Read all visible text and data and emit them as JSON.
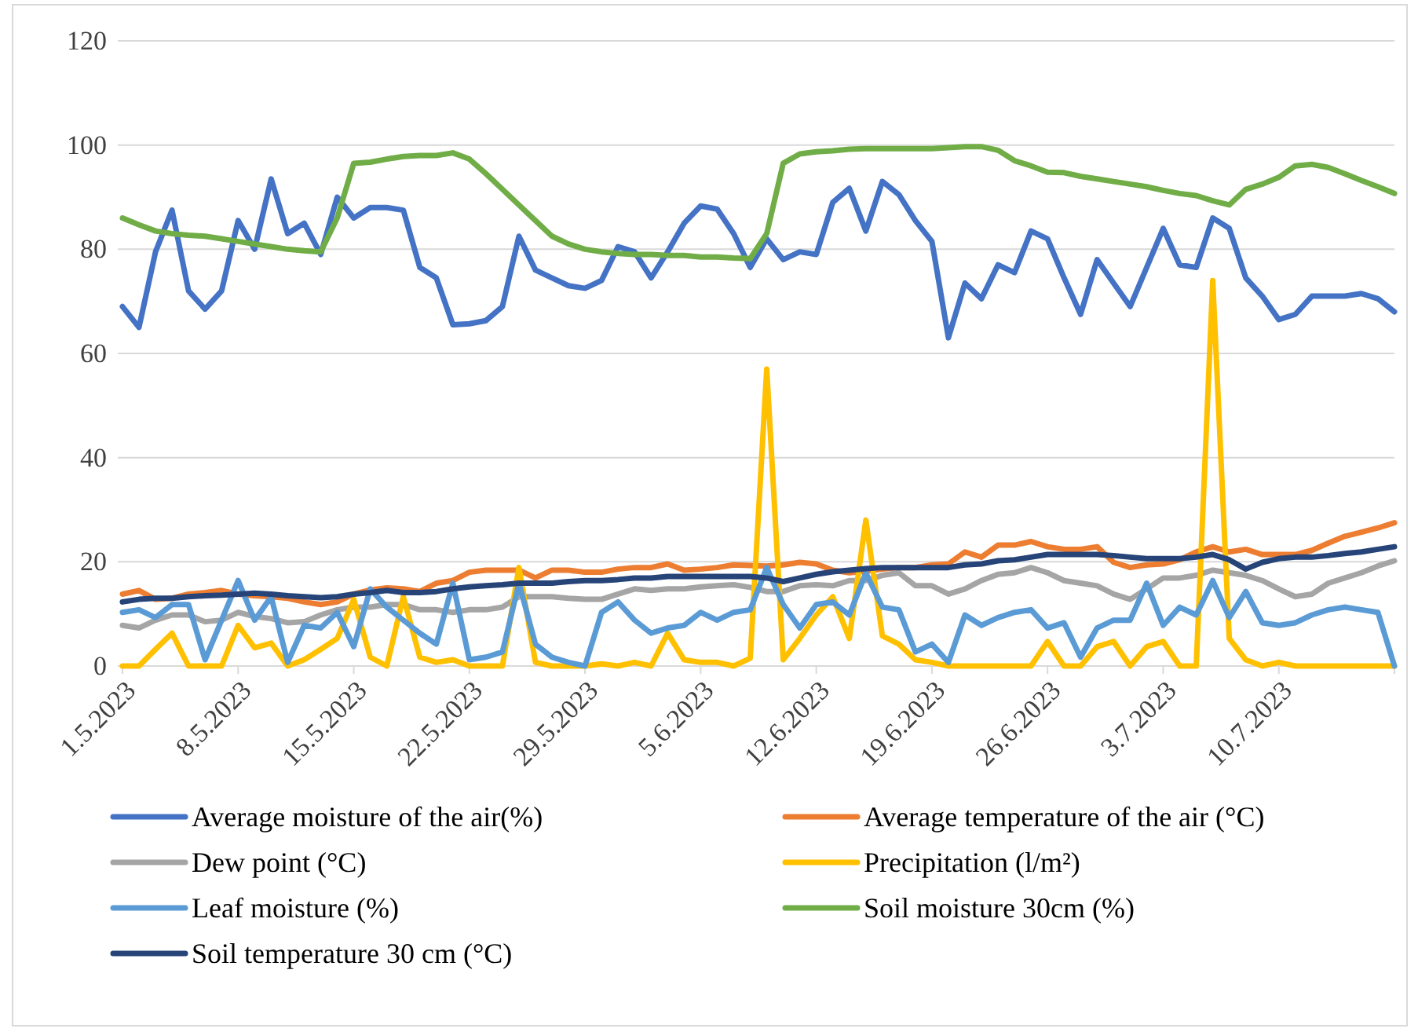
{
  "chart_data": {
    "type": "line",
    "x": [
      "2023-05-01",
      "2023-05-02",
      "2023-05-03",
      "2023-05-04",
      "2023-05-05",
      "2023-05-06",
      "2023-05-07",
      "2023-05-08",
      "2023-05-09",
      "2023-05-10",
      "2023-05-11",
      "2023-05-12",
      "2023-05-13",
      "2023-05-14",
      "2023-05-15",
      "2023-05-16",
      "2023-05-17",
      "2023-05-18",
      "2023-05-19",
      "2023-05-20",
      "2023-05-21",
      "2023-05-22",
      "2023-05-23",
      "2023-05-24",
      "2023-05-25",
      "2023-05-26",
      "2023-05-27",
      "2023-05-28",
      "2023-05-29",
      "2023-05-30",
      "2023-05-31",
      "2023-06-01",
      "2023-06-02",
      "2023-06-03",
      "2023-06-04",
      "2023-06-05",
      "2023-06-06",
      "2023-06-07",
      "2023-06-08",
      "2023-06-09",
      "2023-06-10",
      "2023-06-11",
      "2023-06-12",
      "2023-06-13",
      "2023-06-14",
      "2023-06-15",
      "2023-06-16",
      "2023-06-17",
      "2023-06-18",
      "2023-06-19",
      "2023-06-20",
      "2023-06-21",
      "2023-06-22",
      "2023-06-23",
      "2023-06-24",
      "2023-06-25",
      "2023-06-26",
      "2023-06-27",
      "2023-06-28",
      "2023-06-29",
      "2023-06-30",
      "2023-07-01",
      "2023-07-02",
      "2023-07-03",
      "2023-07-04",
      "2023-07-05",
      "2023-07-06",
      "2023-07-07",
      "2023-07-08",
      "2023-07-09",
      "2023-07-10",
      "2023-07-11",
      "2023-07-12",
      "2023-07-13",
      "2023-07-14",
      "2023-07-15",
      "2023-07-16",
      "2023-07-17"
    ],
    "xlim": [
      "2023-05-01",
      "2023-07-17"
    ],
    "xticks": [
      {
        "value": "2023-05-01",
        "label": "1.5.2023"
      },
      {
        "value": "2023-05-08",
        "label": "8.5.2023"
      },
      {
        "value": "2023-05-15",
        "label": "15.5.2023"
      },
      {
        "value": "2023-05-22",
        "label": "22.5.2023"
      },
      {
        "value": "2023-05-29",
        "label": "29.5.2023"
      },
      {
        "value": "2023-06-05",
        "label": "5.6.2023"
      },
      {
        "value": "2023-06-12",
        "label": "12.6.2023"
      },
      {
        "value": "2023-06-19",
        "label": "19.6.2023"
      },
      {
        "value": "2023-06-26",
        "label": "26.6.2023"
      },
      {
        "value": "2023-07-03",
        "label": "3.7.2023"
      },
      {
        "value": "2023-07-10",
        "label": "10.7.2023"
      }
    ],
    "ylim": [
      0,
      120
    ],
    "yticks": [
      0,
      20,
      40,
      60,
      80,
      100,
      120
    ],
    "grid": "y",
    "legend": "bottom",
    "line_style": "solid",
    "marker": "none",
    "series": [
      {
        "name": "Average moisture of the air(%)",
        "color": "#4472c4",
        "values": [
          69,
          65,
          79.5,
          87.5,
          72,
          68.5,
          72,
          85.5,
          80,
          93.5,
          83,
          85,
          79,
          90,
          86,
          88,
          88,
          87.5,
          76.5,
          74.5,
          65.5,
          65.7,
          66.3,
          69,
          82.5,
          76,
          74.5,
          73,
          72.5,
          74,
          80.5,
          79.5,
          74.5,
          79.5,
          85,
          88.3,
          87.7,
          83,
          76.5,
          82,
          78,
          79.5,
          79,
          89,
          91.7,
          83.5,
          93,
          90.5,
          85.5,
          81.5,
          63,
          73.5,
          70.5,
          77,
          75.5,
          83.5,
          82,
          74.5,
          67.5,
          78,
          73.5,
          69,
          76.5,
          84,
          77,
          76.5,
          86,
          84,
          74.5,
          71,
          66.5,
          67.5,
          71,
          71,
          71,
          71.5,
          70.5,
          68
        ]
      },
      {
        "name": "Average temperature of the air (°C)",
        "color": "#ed7d31",
        "values": [
          13.8,
          14.5,
          12.8,
          13,
          13.8,
          14.1,
          14.5,
          13.8,
          13.5,
          13.3,
          13,
          12.3,
          11.8,
          12.3,
          13.8,
          14.6,
          15,
          14.8,
          14.3,
          15.9,
          16.4,
          18,
          18.4,
          18.4,
          18.4,
          16.9,
          18.4,
          18.4,
          18,
          18,
          18.6,
          18.9,
          18.9,
          19.6,
          18.4,
          18.6,
          18.9,
          19.4,
          19.3,
          19.2,
          19.4,
          19.9,
          19.6,
          18.4,
          17.9,
          18.2,
          18.6,
          18.9,
          18.9,
          19.4,
          19.6,
          21.9,
          20.9,
          23.2,
          23.2,
          23.9,
          22.9,
          22.4,
          22.4,
          22.9,
          19.9,
          18.9,
          19.4,
          19.6,
          20.4,
          21.9,
          22.9,
          21.9,
          22.4,
          21.4,
          21.4,
          21.4,
          22.2,
          23.6,
          24.9,
          25.7,
          26.5,
          27.5
        ]
      },
      {
        "name": "Dew point (°C)",
        "color": "#a5a5a5",
        "values": [
          7.8,
          7.3,
          8.8,
          9.8,
          9.8,
          8.5,
          8.8,
          10.3,
          9.5,
          9.1,
          8.3,
          8.5,
          9.8,
          10.8,
          11.3,
          11.3,
          11.8,
          11.8,
          10.8,
          10.8,
          10.3,
          10.8,
          10.8,
          11.3,
          13.3,
          13.3,
          13.3,
          13,
          12.8,
          12.8,
          13.8,
          14.8,
          14.5,
          14.8,
          14.8,
          15.2,
          15.4,
          15.6,
          15.1,
          14.3,
          14.3,
          15.4,
          15.6,
          15.4,
          16.4,
          16.4,
          17.4,
          17.9,
          15.4,
          15.4,
          13.8,
          14.8,
          16.4,
          17.6,
          17.9,
          18.9,
          17.9,
          16.4,
          15.9,
          15.4,
          13.8,
          12.8,
          14.8,
          16.9,
          16.9,
          17.4,
          18.4,
          17.9,
          17.4,
          16.4,
          14.8,
          13.3,
          13.8,
          15.9,
          16.9,
          17.9,
          19.2,
          20.2
        ]
      },
      {
        "name": "Precipitation (l/m²)",
        "color": "#ffc000",
        "values": [
          0,
          0,
          3.2,
          6.3,
          0,
          0,
          0,
          7.8,
          3.5,
          4.4,
          0,
          1.2,
          3.2,
          5.3,
          12.8,
          1.7,
          0,
          13.3,
          1.7,
          0.7,
          1.2,
          0,
          0,
          0,
          18.9,
          0.7,
          0,
          0,
          0,
          0.4,
          0,
          0.7,
          0,
          6.3,
          1.2,
          0.7,
          0.7,
          0,
          1.5,
          57,
          1.2,
          5.3,
          9.8,
          13.3,
          5.3,
          28,
          5.8,
          4.2,
          1.2,
          0.7,
          0,
          0,
          0,
          0,
          0,
          0,
          4.7,
          0,
          0,
          3.7,
          4.7,
          0,
          3.7,
          4.7,
          0,
          0,
          74,
          5.3,
          1.2,
          0,
          0.7,
          0,
          0,
          0,
          0,
          0,
          0,
          0
        ]
      },
      {
        "name": "Leaf moisture (%)",
        "color": "#5b9bd5",
        "values": [
          10.3,
          10.8,
          9.3,
          11.8,
          11.8,
          1.2,
          8.8,
          16.4,
          8.8,
          13.3,
          0.7,
          7.8,
          7.3,
          10.3,
          3.7,
          14.8,
          11.3,
          8.8,
          6.3,
          4.2,
          15.9,
          1.2,
          1.7,
          2.7,
          15.9,
          4.2,
          1.7,
          0.7,
          0,
          10.3,
          12.3,
          8.8,
          6.3,
          7.3,
          7.8,
          10.3,
          8.8,
          10.3,
          10.8,
          18.9,
          11.8,
          7.3,
          11.8,
          12.3,
          9.8,
          17.9,
          11.3,
          10.8,
          2.7,
          4.2,
          0.7,
          9.8,
          7.8,
          9.3,
          10.3,
          10.8,
          7.3,
          8.3,
          1.7,
          7.3,
          8.8,
          8.8,
          15.9,
          7.8,
          11.3,
          9.8,
          16.4,
          9.3,
          14.3,
          8.3,
          7.8,
          8.3,
          9.8,
          10.8,
          11.3,
          10.8,
          10.3,
          0
        ]
      },
      {
        "name": "Soil moisture 30cm (%)",
        "color": "#70ad47",
        "values": [
          86,
          84.7,
          83.5,
          83,
          82.7,
          82.5,
          82,
          81.5,
          81,
          80.5,
          80,
          79.7,
          79.5,
          86,
          96.5,
          96.7,
          97.3,
          97.8,
          98,
          98,
          98.5,
          97.3,
          94.5,
          91.5,
          88.5,
          85.5,
          82.5,
          81,
          80,
          79.5,
          79.2,
          79,
          79,
          78.8,
          78.8,
          78.5,
          78.5,
          78.3,
          78.2,
          83,
          96.5,
          98.3,
          98.7,
          98.9,
          99.2,
          99.3,
          99.3,
          99.3,
          99.3,
          99.3,
          99.5,
          99.7,
          99.7,
          99,
          97,
          96,
          94.8,
          94.7,
          94,
          93.5,
          93,
          92.5,
          92,
          91.3,
          90.7,
          90.3,
          89.3,
          88.5,
          91.5,
          92.5,
          93.8,
          96,
          96.3,
          95.7,
          94.5,
          93.2,
          92,
          90.7
        ]
      },
      {
        "name": "Soil temperature 30 cm (°C)",
        "color": "#264478",
        "values": [
          12.3,
          12.8,
          13,
          13,
          13.3,
          13.5,
          13.6,
          13.8,
          14,
          13.8,
          13.5,
          13.3,
          13.1,
          13.3,
          13.8,
          14.1,
          14.5,
          14.1,
          14.1,
          14.3,
          14.8,
          15.2,
          15.4,
          15.6,
          15.9,
          15.9,
          15.9,
          16.2,
          16.4,
          16.4,
          16.6,
          16.9,
          16.9,
          17.2,
          17.2,
          17.2,
          17.2,
          17.2,
          17.2,
          16.9,
          16.2,
          16.9,
          17.6,
          18.1,
          18.4,
          18.7,
          18.9,
          18.9,
          18.9,
          18.9,
          18.9,
          19.4,
          19.6,
          20.2,
          20.4,
          20.9,
          21.4,
          21.4,
          21.4,
          21.4,
          21.2,
          20.9,
          20.6,
          20.6,
          20.6,
          20.9,
          21.4,
          20.4,
          18.6,
          19.9,
          20.6,
          20.9,
          20.9,
          21.2,
          21.6,
          21.9,
          22.4,
          22.9
        ]
      }
    ]
  }
}
